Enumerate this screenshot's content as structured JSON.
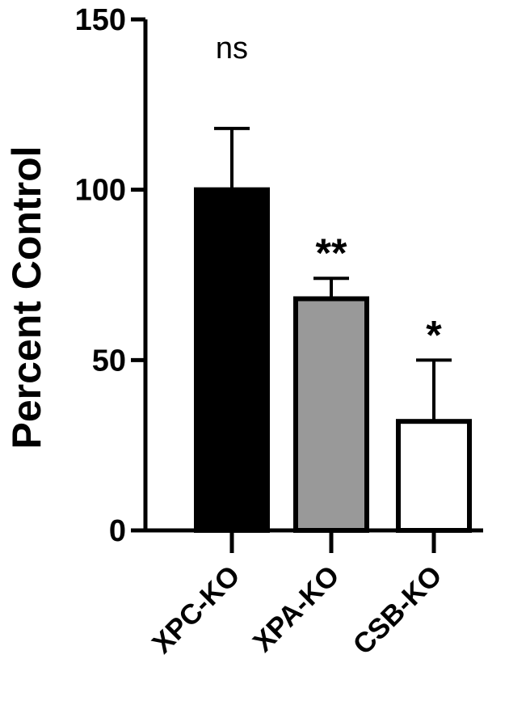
{
  "chart_data": {
    "type": "bar",
    "ylabel": "Percent Control",
    "xlabel": "",
    "ylim": [
      0,
      150
    ],
    "yticks": [
      0,
      50,
      100,
      150
    ],
    "grid": false,
    "categories": [
      "XPC-KO",
      "XPA-KO",
      "CSB-KO"
    ],
    "values": [
      100,
      68,
      32
    ],
    "errors": [
      18,
      6,
      18
    ],
    "significance": [
      "ns",
      "**",
      "*"
    ],
    "bar_colors": [
      "#000000",
      "#999999",
      "#ffffff"
    ]
  }
}
